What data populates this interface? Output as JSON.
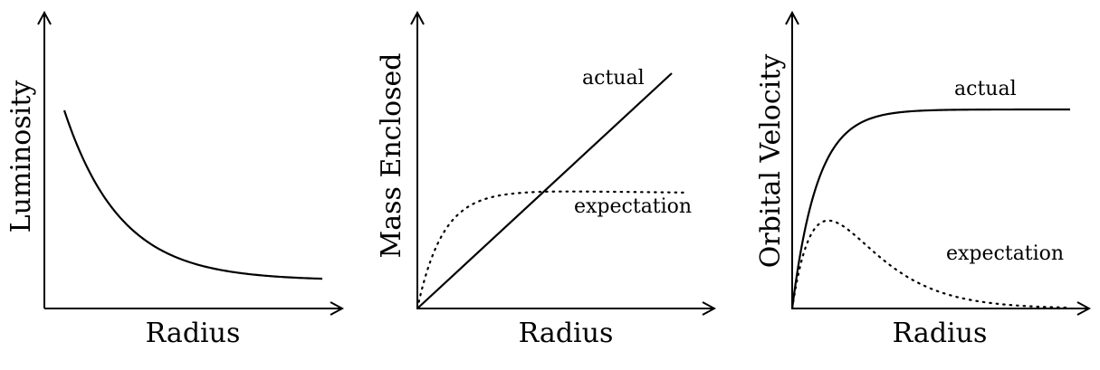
{
  "panels": [
    {
      "id": "luminosity",
      "ylabel": "Luminosity",
      "xlabel": "Radius",
      "curves": [
        {
          "name": "",
          "style": "solid",
          "label": ""
        }
      ]
    },
    {
      "id": "mass",
      "ylabel": "Mass Enclosed",
      "xlabel": "Radius",
      "curves": [
        {
          "name": "actual",
          "style": "solid",
          "label": "actual"
        },
        {
          "name": "expectation",
          "style": "dotted",
          "label": "expectation"
        }
      ]
    },
    {
      "id": "velocity",
      "ylabel": "Orbital Velocity",
      "xlabel": "Radius",
      "curves": [
        {
          "name": "actual",
          "style": "solid",
          "label": "actual"
        },
        {
          "name": "expectation",
          "style": "dotted",
          "label": "expectation"
        }
      ]
    }
  ],
  "colors": {
    "ink": "#000000",
    "background": "#ffffff"
  }
}
